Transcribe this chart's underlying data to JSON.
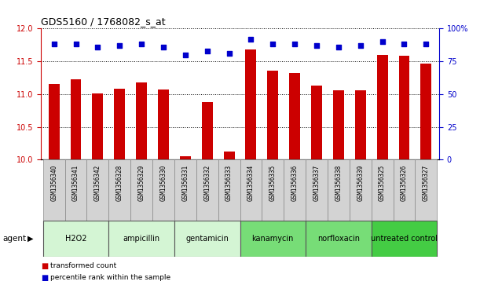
{
  "title": "GDS5160 / 1768082_s_at",
  "samples": [
    "GSM1356340",
    "GSM1356341",
    "GSM1356342",
    "GSM1356328",
    "GSM1356329",
    "GSM1356330",
    "GSM1356331",
    "GSM1356332",
    "GSM1356333",
    "GSM1356334",
    "GSM1356335",
    "GSM1356336",
    "GSM1356337",
    "GSM1356338",
    "GSM1356339",
    "GSM1356325",
    "GSM1356326",
    "GSM1356327"
  ],
  "bar_values": [
    11.15,
    11.23,
    11.01,
    11.08,
    11.18,
    11.07,
    10.05,
    10.88,
    10.12,
    11.68,
    11.36,
    11.32,
    11.13,
    11.06,
    11.06,
    11.6,
    11.58,
    11.46
  ],
  "percentile_values": [
    88,
    88,
    86,
    87,
    88,
    86,
    80,
    83,
    81,
    92,
    88,
    88,
    87,
    86,
    87,
    90,
    88,
    88
  ],
  "groups": [
    {
      "name": "H2O2",
      "start": 0,
      "end": 3,
      "color": "#d4f5d4"
    },
    {
      "name": "ampicillin",
      "start": 3,
      "end": 6,
      "color": "#d4f5d4"
    },
    {
      "name": "gentamicin",
      "start": 6,
      "end": 9,
      "color": "#d4f5d4"
    },
    {
      "name": "kanamycin",
      "start": 9,
      "end": 12,
      "color": "#77dd77"
    },
    {
      "name": "norfloxacin",
      "start": 12,
      "end": 15,
      "color": "#77dd77"
    },
    {
      "name": "untreated control",
      "start": 15,
      "end": 18,
      "color": "#44cc44"
    }
  ],
  "ylim": [
    10.0,
    12.0
  ],
  "yticks": [
    10.0,
    10.5,
    11.0,
    11.5,
    12.0
  ],
  "y2lim": [
    0,
    100
  ],
  "y2ticks": [
    0,
    25,
    50,
    75,
    100
  ],
  "y2ticklabels": [
    "0",
    "25",
    "50",
    "75",
    "100%"
  ],
  "bar_color": "#cc0000",
  "dot_color": "#0000cc",
  "bar_width": 0.5,
  "legend_items": [
    {
      "label": "transformed count",
      "color": "#cc0000"
    },
    {
      "label": "percentile rank within the sample",
      "color": "#0000cc"
    }
  ],
  "agent_label": "agent",
  "sample_box_color": "#d3d3d3",
  "fig_bg": "#ffffff"
}
